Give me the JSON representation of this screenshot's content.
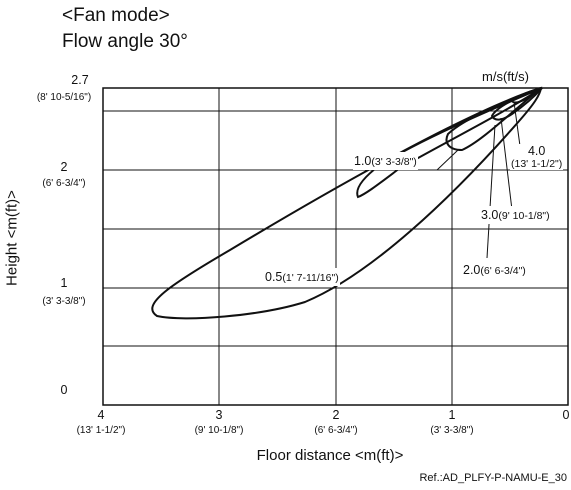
{
  "title": {
    "line1": "<Fan mode>",
    "line2": "Flow angle 30°"
  },
  "axes": {
    "y_label": "Height <m(ft)>",
    "x_label": "Floor distance <m(ft)>",
    "unit_label": "m/s(ft/s)",
    "reference": "Ref.:AD_PLFY-P-NAMU-E_30"
  },
  "y_ticks": [
    {
      "value": "2.7",
      "sub": "(8' 10-5/16\")"
    },
    {
      "value": "2",
      "sub": "(6' 6-3/4\")"
    },
    {
      "value": "1",
      "sub": "(3' 3-3/8\")"
    },
    {
      "value": "0",
      "sub": ""
    }
  ],
  "x_ticks": [
    {
      "value": "4",
      "sub": "(13' 1-1/2\")"
    },
    {
      "value": "3",
      "sub": "(9' 10-1/8\")"
    },
    {
      "value": "2",
      "sub": "(6' 6-3/4\")"
    },
    {
      "value": "1",
      "sub": "(3' 3-3/8\")"
    },
    {
      "value": "0",
      "sub": ""
    }
  ],
  "contours": [
    {
      "value": "0.5",
      "sub": "(1' 7-11/16\")"
    },
    {
      "value": "1.0",
      "sub": "(3' 3-3/8\")"
    },
    {
      "value": "2.0",
      "sub": "(6' 6-3/4\")"
    },
    {
      "value": "3.0",
      "sub": "(9' 10-1/8\")"
    },
    {
      "value": "4.0",
      "sub": "(13' 1-1/2\")"
    }
  ],
  "chart_data": {
    "type": "contour",
    "x_range": [
      4,
      0
    ],
    "y_range": [
      0,
      2.7
    ],
    "grid": true,
    "isovel_values_m_per_s": [
      0.5,
      1.0,
      2.0,
      3.0,
      4.0
    ]
  }
}
